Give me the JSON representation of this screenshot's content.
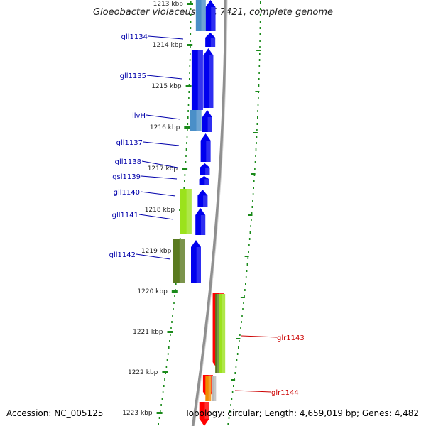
{
  "title": "Gloeobacter violaceus PCC 7421, complete genome",
  "footer": {
    "accession": "Accession: NC_005125",
    "summary": "Topology: circular; Length: 4,659,019 bp; Genes: 4,482"
  },
  "colors": {
    "backbone": "#909090",
    "cds_reverse": "#0000ee",
    "cds_forward": "#ff0000",
    "feature_light_blue": "#4a8fc8",
    "feature_lime": "#9be21c",
    "feature_olive": "#5a7a1f",
    "feature_orange": "#f08a00",
    "feature_gray": "#b8b8b8",
    "tick_green": "#1a8a1a",
    "label_blue": "#0000aa",
    "label_red": "#cc0000"
  },
  "axis": {
    "unit": "kbp",
    "ticks": [
      "1213 kbp",
      "1214 kbp",
      "1215 kbp",
      "1216 kbp",
      "1217 kbp",
      "1218 kbp",
      "1219 kbp",
      "1220 kbp",
      "1221 kbp",
      "1222 kbp",
      "1223 kbp"
    ]
  },
  "genes": [
    {
      "name": "gll1134",
      "strand": "reverse"
    },
    {
      "name": "gll1135",
      "strand": "reverse"
    },
    {
      "name": "ilvH",
      "strand": "reverse"
    },
    {
      "name": "gll1137",
      "strand": "reverse"
    },
    {
      "name": "gll1138",
      "strand": "reverse"
    },
    {
      "name": "gsl1139",
      "strand": "reverse"
    },
    {
      "name": "gll1140",
      "strand": "reverse"
    },
    {
      "name": "gll1141",
      "strand": "reverse"
    },
    {
      "name": "gll1142",
      "strand": "reverse"
    },
    {
      "name": "glr1143",
      "strand": "forward"
    },
    {
      "name": "glr1144",
      "strand": "forward"
    }
  ]
}
